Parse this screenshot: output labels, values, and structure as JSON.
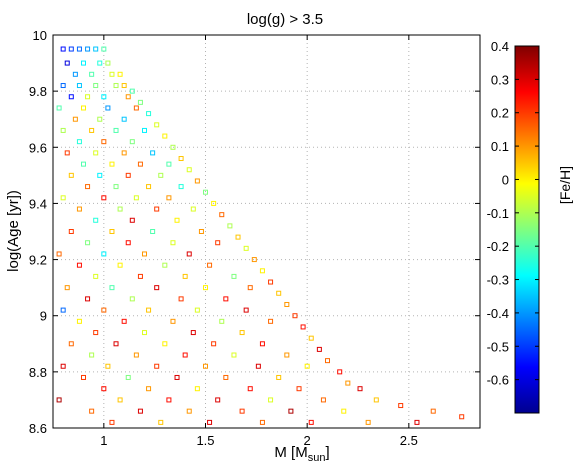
{
  "chart_data": {
    "type": "scatter",
    "title": "log(g) > 3.5",
    "xlabel": "M  [M",
    "xlabel_sub": "sun",
    "xlabel_close": "]",
    "ylabel": "log(Age  [yr])",
    "xlim": [
      0.75,
      2.85
    ],
    "ylim": [
      8.6,
      10.0
    ],
    "xticks": [
      1,
      1.5,
      2,
      2.5
    ],
    "xtick_labels": [
      "1",
      "1.5",
      "2",
      "2.5"
    ],
    "yticks": [
      8.6,
      8.8,
      9.0,
      9.2,
      9.4,
      9.6,
      9.8,
      10.0
    ],
    "ytick_labels": [
      "8.6",
      "8.8",
      "9",
      "9.2",
      "9.4",
      "9.6",
      "9.8",
      "10"
    ],
    "grid": true,
    "marker": "open-square",
    "colorbar": {
      "label": "[Fe/H]",
      "clim": [
        -0.7,
        0.4
      ],
      "ticks": [
        0.4,
        0.3,
        0.2,
        0.1,
        0,
        -0.1,
        -0.2,
        -0.3,
        -0.4,
        -0.5,
        -0.6
      ],
      "tick_labels": [
        "0.4",
        "0.3",
        "0.2",
        "0.1",
        "0",
        "-0.1",
        "-0.2",
        "-0.3",
        "-0.4",
        "-0.5",
        "-0.6"
      ],
      "colormap": "jet"
    },
    "points": [
      [
        0.8,
        9.95,
        -0.55
      ],
      [
        0.84,
        9.95,
        -0.5
      ],
      [
        0.88,
        9.95,
        -0.45
      ],
      [
        0.92,
        9.95,
        -0.4
      ],
      [
        0.96,
        9.95,
        -0.35
      ],
      [
        1.0,
        9.95,
        -0.2
      ],
      [
        0.82,
        9.9,
        -0.6
      ],
      [
        0.9,
        9.9,
        -0.3
      ],
      [
        0.98,
        9.9,
        -0.25
      ],
      [
        1.02,
        9.9,
        -0.1
      ],
      [
        0.86,
        9.86,
        -0.4
      ],
      [
        0.94,
        9.86,
        -0.2
      ],
      [
        1.04,
        9.86,
        -0.05
      ],
      [
        1.08,
        9.86,
        0.0
      ],
      [
        0.8,
        9.82,
        -0.45
      ],
      [
        0.88,
        9.82,
        -0.35
      ],
      [
        0.96,
        9.82,
        -0.15
      ],
      [
        1.06,
        9.82,
        -0.1
      ],
      [
        1.1,
        9.82,
        0.05
      ],
      [
        1.14,
        9.8,
        -0.2
      ],
      [
        0.84,
        9.78,
        -0.55
      ],
      [
        0.92,
        9.78,
        -0.05
      ],
      [
        1.0,
        9.78,
        -0.3
      ],
      [
        1.12,
        9.78,
        0.1
      ],
      [
        1.18,
        9.76,
        -0.15
      ],
      [
        0.78,
        9.74,
        -0.2
      ],
      [
        0.9,
        9.74,
        0.0
      ],
      [
        1.02,
        9.74,
        -0.4
      ],
      [
        1.16,
        9.74,
        0.15
      ],
      [
        1.22,
        9.72,
        -0.25
      ],
      [
        0.86,
        9.7,
        0.1
      ],
      [
        0.98,
        9.7,
        -0.1
      ],
      [
        1.1,
        9.7,
        -0.35
      ],
      [
        1.26,
        9.68,
        -0.05
      ],
      [
        0.8,
        9.66,
        -0.1
      ],
      [
        0.94,
        9.66,
        0.05
      ],
      [
        1.06,
        9.66,
        -0.2
      ],
      [
        1.2,
        9.66,
        -0.3
      ],
      [
        1.3,
        9.64,
        0.0
      ],
      [
        0.88,
        9.62,
        -0.25
      ],
      [
        1.0,
        9.62,
        0.15
      ],
      [
        1.14,
        9.62,
        -0.15
      ],
      [
        1.34,
        9.6,
        -0.1
      ],
      [
        0.82,
        9.58,
        0.2
      ],
      [
        0.96,
        9.58,
        -0.05
      ],
      [
        1.1,
        9.58,
        0.1
      ],
      [
        1.24,
        9.58,
        -0.35
      ],
      [
        1.38,
        9.56,
        0.05
      ],
      [
        0.9,
        9.54,
        -0.2
      ],
      [
        1.04,
        9.54,
        0.0
      ],
      [
        1.18,
        9.54,
        0.15
      ],
      [
        1.32,
        9.54,
        -0.2
      ],
      [
        1.42,
        9.52,
        -0.05
      ],
      [
        0.84,
        9.5,
        0.05
      ],
      [
        0.98,
        9.5,
        -0.3
      ],
      [
        1.12,
        9.5,
        0.2
      ],
      [
        1.28,
        9.5,
        -0.1
      ],
      [
        1.46,
        9.48,
        0.1
      ],
      [
        0.92,
        9.46,
        0.15
      ],
      [
        1.06,
        9.46,
        -0.15
      ],
      [
        1.22,
        9.46,
        0.05
      ],
      [
        1.38,
        9.46,
        -0.25
      ],
      [
        1.5,
        9.44,
        -0.15
      ],
      [
        0.8,
        9.42,
        -0.05
      ],
      [
        1.0,
        9.42,
        0.25
      ],
      [
        1.16,
        9.42,
        -0.05
      ],
      [
        1.32,
        9.42,
        0.1
      ],
      [
        1.54,
        9.4,
        0.0
      ],
      [
        0.88,
        9.38,
        0.1
      ],
      [
        1.08,
        9.38,
        -0.1
      ],
      [
        1.26,
        9.38,
        0.2
      ],
      [
        1.44,
        9.38,
        -0.05
      ],
      [
        1.58,
        9.36,
        0.15
      ],
      [
        0.96,
        9.34,
        -0.25
      ],
      [
        1.14,
        9.34,
        0.3
      ],
      [
        1.36,
        9.34,
        0.0
      ],
      [
        1.62,
        9.32,
        -0.1
      ],
      [
        0.84,
        9.3,
        0.2
      ],
      [
        1.04,
        9.3,
        0.05
      ],
      [
        1.24,
        9.3,
        -0.2
      ],
      [
        1.48,
        9.3,
        0.1
      ],
      [
        1.66,
        9.28,
        0.05
      ],
      [
        0.92,
        9.26,
        -0.15
      ],
      [
        1.12,
        9.26,
        0.25
      ],
      [
        1.34,
        9.26,
        -0.05
      ],
      [
        1.56,
        9.26,
        0.2
      ],
      [
        1.7,
        9.24,
        -0.05
      ],
      [
        0.78,
        9.22,
        0.15
      ],
      [
        1.0,
        9.22,
        -0.3
      ],
      [
        1.2,
        9.22,
        0.1
      ],
      [
        1.42,
        9.22,
        0.3
      ],
      [
        1.74,
        9.2,
        0.1
      ],
      [
        0.88,
        9.18,
        0.25
      ],
      [
        1.08,
        9.18,
        0.0
      ],
      [
        1.3,
        9.18,
        -0.1
      ],
      [
        1.52,
        9.18,
        0.15
      ],
      [
        1.78,
        9.16,
        0.0
      ],
      [
        0.96,
        9.14,
        -0.05
      ],
      [
        1.18,
        9.14,
        0.2
      ],
      [
        1.4,
        9.14,
        0.05
      ],
      [
        1.64,
        9.14,
        -0.15
      ],
      [
        1.82,
        9.12,
        0.2
      ],
      [
        0.82,
        9.1,
        0.1
      ],
      [
        1.04,
        9.1,
        -0.2
      ],
      [
        1.26,
        9.1,
        0.3
      ],
      [
        1.5,
        9.1,
        0.0
      ],
      [
        1.72,
        9.1,
        0.15
      ],
      [
        1.86,
        9.08,
        0.05
      ],
      [
        0.92,
        9.06,
        0.3
      ],
      [
        1.14,
        9.06,
        -0.1
      ],
      [
        1.38,
        9.06,
        0.2
      ],
      [
        1.6,
        9.06,
        0.25
      ],
      [
        1.9,
        9.04,
        0.1
      ],
      [
        0.8,
        9.02,
        -0.45
      ],
      [
        1.0,
        9.02,
        0.15
      ],
      [
        1.22,
        9.02,
        0.05
      ],
      [
        1.46,
        9.02,
        -0.05
      ],
      [
        1.7,
        9.02,
        0.3
      ],
      [
        1.94,
        9.0,
        0.2
      ],
      [
        0.88,
        8.98,
        0.0
      ],
      [
        1.1,
        8.98,
        0.25
      ],
      [
        1.34,
        8.98,
        0.1
      ],
      [
        1.58,
        8.98,
        -0.1
      ],
      [
        1.82,
        8.98,
        0.15
      ],
      [
        1.98,
        8.96,
        0.25
      ],
      [
        0.96,
        8.94,
        0.2
      ],
      [
        1.2,
        8.94,
        -0.05
      ],
      [
        1.44,
        8.94,
        0.3
      ],
      [
        1.68,
        8.94,
        0.05
      ],
      [
        2.02,
        8.92,
        0.05
      ],
      [
        0.84,
        8.9,
        0.15
      ],
      [
        1.06,
        8.9,
        0.3
      ],
      [
        1.3,
        8.9,
        0.0
      ],
      [
        1.54,
        8.9,
        0.2
      ],
      [
        1.78,
        8.9,
        0.25
      ],
      [
        2.06,
        8.88,
        0.3
      ],
      [
        0.94,
        8.86,
        -0.1
      ],
      [
        1.16,
        8.86,
        0.1
      ],
      [
        1.4,
        8.86,
        0.25
      ],
      [
        1.64,
        8.86,
        -0.05
      ],
      [
        1.9,
        8.86,
        0.1
      ],
      [
        2.1,
        8.84,
        0.15
      ],
      [
        0.8,
        8.82,
        0.3
      ],
      [
        1.02,
        8.82,
        0.05
      ],
      [
        1.26,
        8.82,
        0.2
      ],
      [
        1.5,
        8.82,
        0.1
      ],
      [
        1.76,
        8.82,
        0.3
      ],
      [
        2.0,
        8.82,
        0.0
      ],
      [
        2.16,
        8.8,
        0.25
      ],
      [
        0.9,
        8.78,
        0.2
      ],
      [
        1.12,
        8.78,
        -0.15
      ],
      [
        1.36,
        8.78,
        0.3
      ],
      [
        1.6,
        8.78,
        0.15
      ],
      [
        1.86,
        8.78,
        0.05
      ],
      [
        2.2,
        8.76,
        0.1
      ],
      [
        1.0,
        8.74,
        0.25
      ],
      [
        1.22,
        8.74,
        0.1
      ],
      [
        1.46,
        8.74,
        0.0
      ],
      [
        1.72,
        8.74,
        0.25
      ],
      [
        1.96,
        8.74,
        0.2
      ],
      [
        2.26,
        8.74,
        0.3
      ],
      [
        0.78,
        8.7,
        0.35
      ],
      [
        1.08,
        8.7,
        0.05
      ],
      [
        1.32,
        8.7,
        0.25
      ],
      [
        1.56,
        8.7,
        0.3
      ],
      [
        1.82,
        8.7,
        -0.05
      ],
      [
        2.08,
        8.7,
        0.15
      ],
      [
        2.34,
        8.7,
        0.05
      ],
      [
        0.94,
        8.66,
        0.15
      ],
      [
        1.18,
        8.66,
        0.3
      ],
      [
        1.42,
        8.66,
        0.1
      ],
      [
        1.68,
        8.66,
        0.2
      ],
      [
        1.92,
        8.66,
        0.35
      ],
      [
        2.18,
        8.66,
        0.0
      ],
      [
        2.46,
        8.68,
        0.2
      ],
      [
        2.62,
        8.66,
        0.15
      ],
      [
        1.04,
        8.62,
        0.2
      ],
      [
        1.28,
        8.62,
        0.05
      ],
      [
        1.52,
        8.62,
        0.3
      ],
      [
        1.78,
        8.62,
        0.15
      ],
      [
        2.02,
        8.62,
        0.25
      ],
      [
        2.3,
        8.62,
        0.1
      ],
      [
        2.54,
        8.62,
        0.3
      ],
      [
        2.76,
        8.64,
        0.2
      ]
    ]
  }
}
